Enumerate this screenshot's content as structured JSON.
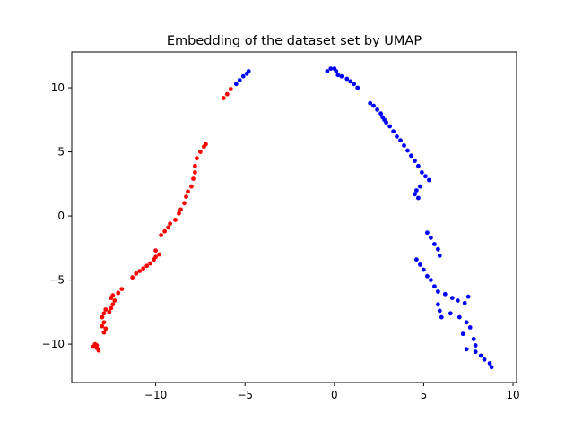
{
  "chart_data": {
    "type": "scatter",
    "title": "Embedding of the dataset set by UMAP",
    "xlabel": "",
    "ylabel": "",
    "xlim": [
      -14.7,
      10.2
    ],
    "ylim": [
      -13.0,
      12.8
    ],
    "xticks": [
      -10,
      -5,
      0,
      5,
      10
    ],
    "yticks": [
      -10,
      -5,
      0,
      5,
      10
    ],
    "xtick_labels": [
      "−10",
      "−5",
      "0",
      "5",
      "10"
    ],
    "ytick_labels": [
      "−10",
      "−5",
      "0",
      "5",
      "10"
    ],
    "grid": false,
    "legend": "none",
    "series": [
      {
        "color": "#ff0000",
        "points": [
          [
            -13.5,
            -10.2
          ],
          [
            -13.4,
            -10.0
          ],
          [
            -13.3,
            -10.3
          ],
          [
            -13.2,
            -10.5
          ],
          [
            -13.3,
            -10.1
          ],
          [
            -12.9,
            -9.1
          ],
          [
            -12.8,
            -8.8
          ],
          [
            -13.0,
            -8.6
          ],
          [
            -12.9,
            -8.3
          ],
          [
            -13.0,
            -7.9
          ],
          [
            -12.9,
            -7.6
          ],
          [
            -12.8,
            -7.3
          ],
          [
            -12.6,
            -7.5
          ],
          [
            -12.5,
            -7.2
          ],
          [
            -12.4,
            -6.9
          ],
          [
            -12.3,
            -6.6
          ],
          [
            -12.5,
            -6.4
          ],
          [
            -12.4,
            -6.2
          ],
          [
            -12.1,
            -6.0
          ],
          [
            -11.9,
            -5.7
          ],
          [
            -11.3,
            -4.8
          ],
          [
            -11.1,
            -4.5
          ],
          [
            -10.9,
            -4.3
          ],
          [
            -10.7,
            -4.1
          ],
          [
            -10.5,
            -3.9
          ],
          [
            -10.3,
            -3.7
          ],
          [
            -10.1,
            -3.4
          ],
          [
            -10.0,
            -3.2
          ],
          [
            -9.8,
            -3.0
          ],
          [
            -10.0,
            -2.7
          ],
          [
            -9.7,
            -1.5
          ],
          [
            -9.5,
            -1.2
          ],
          [
            -9.3,
            -0.9
          ],
          [
            -9.2,
            -0.6
          ],
          [
            -8.9,
            -0.3
          ],
          [
            -8.7,
            0.2
          ],
          [
            -8.6,
            0.5
          ],
          [
            -8.4,
            1.0
          ],
          [
            -8.3,
            1.5
          ],
          [
            -8.2,
            1.9
          ],
          [
            -8.0,
            2.3
          ],
          [
            -7.9,
            2.9
          ],
          [
            -7.8,
            3.4
          ],
          [
            -7.8,
            3.9
          ],
          [
            -7.7,
            4.5
          ],
          [
            -7.5,
            5.0
          ],
          [
            -7.3,
            5.4
          ],
          [
            -7.2,
            5.6
          ],
          [
            -6.2,
            9.2
          ],
          [
            -6.0,
            9.5
          ],
          [
            -5.8,
            9.9
          ]
        ]
      },
      {
        "color": "#0000ff",
        "points": [
          [
            -5.5,
            10.3
          ],
          [
            -5.3,
            10.6
          ],
          [
            -5.1,
            10.9
          ],
          [
            -4.9,
            11.1
          ],
          [
            -4.8,
            11.3
          ],
          [
            -0.4,
            11.3
          ],
          [
            -0.2,
            11.5
          ],
          [
            0.0,
            11.5
          ],
          [
            0.1,
            11.3
          ],
          [
            0.2,
            11.0
          ],
          [
            0.4,
            10.9
          ],
          [
            0.7,
            10.7
          ],
          [
            0.9,
            10.5
          ],
          [
            1.1,
            10.3
          ],
          [
            1.3,
            10.0
          ],
          [
            2.0,
            8.8
          ],
          [
            2.2,
            8.6
          ],
          [
            2.4,
            8.3
          ],
          [
            2.6,
            8.0
          ],
          [
            2.7,
            7.7
          ],
          [
            2.8,
            7.5
          ],
          [
            2.9,
            7.3
          ],
          [
            3.1,
            7.0
          ],
          [
            3.3,
            6.6
          ],
          [
            3.5,
            6.2
          ],
          [
            3.7,
            5.9
          ],
          [
            3.9,
            5.5
          ],
          [
            4.1,
            5.1
          ],
          [
            4.3,
            4.7
          ],
          [
            4.5,
            4.3
          ],
          [
            4.7,
            3.9
          ],
          [
            4.9,
            3.4
          ],
          [
            5.1,
            3.1
          ],
          [
            5.3,
            2.8
          ],
          [
            4.6,
            2.0
          ],
          [
            4.5,
            1.7
          ],
          [
            4.7,
            1.4
          ],
          [
            4.8,
            2.3
          ],
          [
            5.2,
            -1.3
          ],
          [
            5.4,
            -1.7
          ],
          [
            5.6,
            -2.2
          ],
          [
            5.8,
            -2.6
          ],
          [
            5.9,
            -3.1
          ],
          [
            4.6,
            -3.4
          ],
          [
            4.8,
            -3.8
          ],
          [
            5.0,
            -4.2
          ],
          [
            5.2,
            -4.7
          ],
          [
            5.4,
            -5.0
          ],
          [
            5.6,
            -5.5
          ],
          [
            5.8,
            -5.9
          ],
          [
            6.2,
            -6.1
          ],
          [
            6.6,
            -6.4
          ],
          [
            6.9,
            -6.6
          ],
          [
            7.3,
            -6.8
          ],
          [
            7.5,
            -6.3
          ],
          [
            5.8,
            -6.9
          ],
          [
            5.9,
            -7.4
          ],
          [
            6.0,
            -7.9
          ],
          [
            6.5,
            -7.6
          ],
          [
            7.0,
            -7.9
          ],
          [
            7.4,
            -8.3
          ],
          [
            7.6,
            -8.7
          ],
          [
            7.2,
            -9.2
          ],
          [
            7.8,
            -9.6
          ],
          [
            7.9,
            -10.1
          ],
          [
            7.4,
            -10.4
          ],
          [
            7.9,
            -10.6
          ],
          [
            8.2,
            -10.9
          ],
          [
            8.4,
            -11.2
          ],
          [
            8.7,
            -11.5
          ],
          [
            8.8,
            -11.8
          ]
        ]
      }
    ]
  }
}
